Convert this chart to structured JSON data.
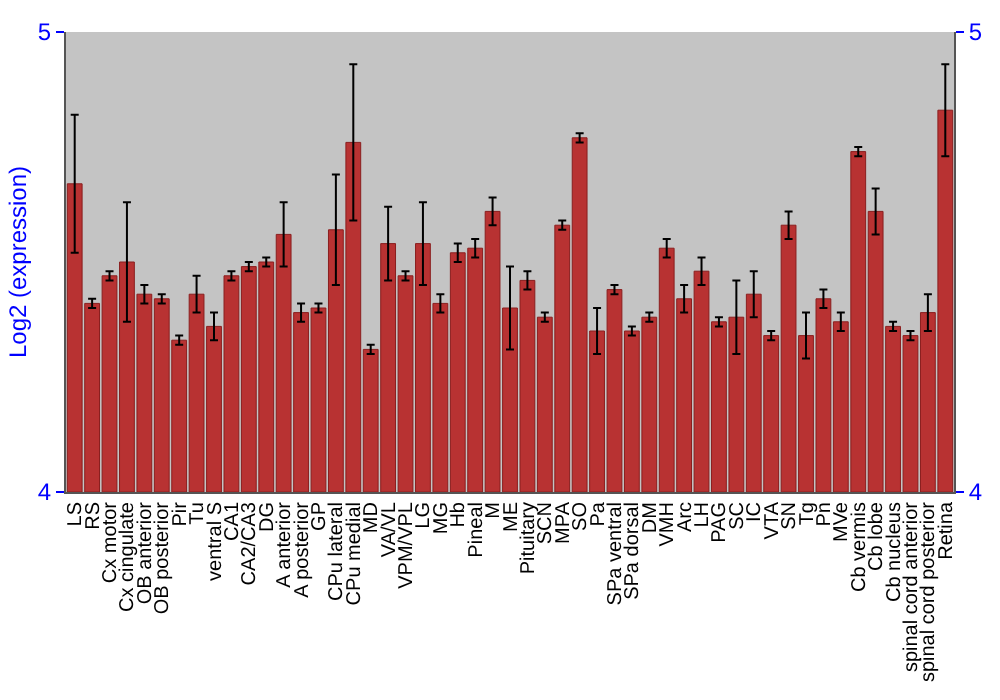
{
  "chart_data": {
    "type": "bar",
    "ylabel": "Log2 (expression)",
    "categories": [
      "LS",
      "RS",
      "Cx motor",
      "Cx cingulate",
      "OB anterior",
      "OB posterior",
      "Pir",
      "Tu",
      "ventral S",
      "CA1",
      "CA2/CA3",
      "DG",
      "A anterior",
      "A posterior",
      "GP",
      "CPu lateral",
      "CPu medial",
      "MD",
      "VA/VL",
      "VPM/VPL",
      "LG",
      "MG",
      "Hb",
      "Pineal",
      "M",
      "ME",
      "Pituitary",
      "SCN",
      "MPA",
      "SO",
      "Pa",
      "SPa ventral",
      "SPa dorsal",
      "DM",
      "VMH",
      "Arc",
      "LH",
      "PAG",
      "SC",
      "IC",
      "VTA",
      "SN",
      "Tg",
      "Pn",
      "MVe",
      "Cb vermis",
      "Cb lobe",
      "Cb nucleus",
      "spinal cord anterior",
      "spinal cord posterior",
      "Retina"
    ],
    "values": [
      4.67,
      4.41,
      4.47,
      4.5,
      4.43,
      4.42,
      4.33,
      4.43,
      4.36,
      4.47,
      4.49,
      4.5,
      4.56,
      4.39,
      4.4,
      4.57,
      4.76,
      4.31,
      4.54,
      4.47,
      4.54,
      4.41,
      4.52,
      4.53,
      4.61,
      4.4,
      4.46,
      4.38,
      4.58,
      4.77,
      4.35,
      4.44,
      4.35,
      4.38,
      4.53,
      4.42,
      4.48,
      4.37,
      4.38,
      4.43,
      4.34,
      4.58,
      4.34,
      4.42,
      4.37,
      4.74,
      4.61,
      4.36,
      4.34,
      4.39,
      4.83
    ],
    "errors": [
      0.15,
      0.01,
      0.01,
      0.13,
      0.02,
      0.01,
      0.01,
      0.04,
      0.03,
      0.01,
      0.01,
      0.01,
      0.07,
      0.02,
      0.01,
      0.12,
      0.17,
      0.01,
      0.08,
      0.01,
      0.09,
      0.02,
      0.02,
      0.02,
      0.03,
      0.09,
      0.02,
      0.01,
      0.01,
      0.01,
      0.05,
      0.01,
      0.01,
      0.01,
      0.02,
      0.03,
      0.03,
      0.01,
      0.08,
      0.05,
      0.01,
      0.03,
      0.05,
      0.02,
      0.02,
      0.01,
      0.05,
      0.01,
      0.01,
      0.04,
      0.1
    ],
    "color": "#b83232",
    "ylim": [
      4,
      5
    ],
    "yticks": [
      4,
      5
    ],
    "y2lim": [
      4,
      5
    ],
    "y2ticks": [
      4,
      5
    ],
    "grid": false
  }
}
